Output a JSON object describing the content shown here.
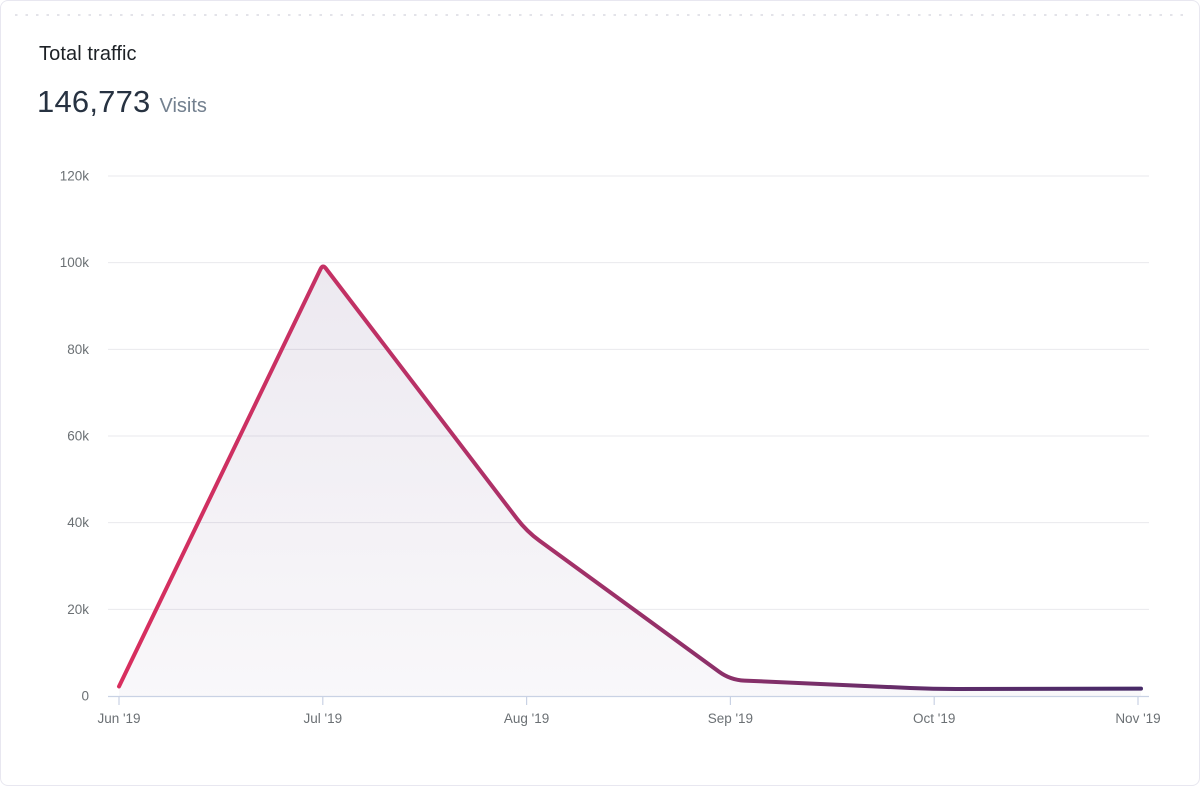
{
  "card": {
    "title": "Total traffic",
    "metric_value": "146,773",
    "metric_unit": "Visits"
  },
  "chart_data": {
    "type": "area",
    "title": "Total traffic",
    "x": [
      "Jun '19",
      "Jul '19",
      "Aug '19",
      "Sep '19",
      "Oct '19",
      "Nov '19"
    ],
    "values": [
      2200,
      99600,
      38000,
      3700,
      1600,
      1700
    ],
    "total_visits": 146773,
    "y_ticks": [
      "0",
      "20k",
      "40k",
      "60k",
      "80k",
      "100k",
      "120k"
    ],
    "y_tick_values": [
      0,
      20000,
      40000,
      60000,
      80000,
      100000,
      120000
    ],
    "ylim": [
      0,
      120000
    ],
    "xlabel": "",
    "ylabel": "",
    "grid": true,
    "legend": false,
    "line_gradient": [
      "#d82e5e",
      "#c53164",
      "#a93168",
      "#8a3069",
      "#5e2c69",
      "#472a67"
    ],
    "fill_color": "#4c2a70",
    "axis_color": "#c9d2e4",
    "grid_color": "#e9e9ed",
    "label_color": "#6b7074"
  }
}
